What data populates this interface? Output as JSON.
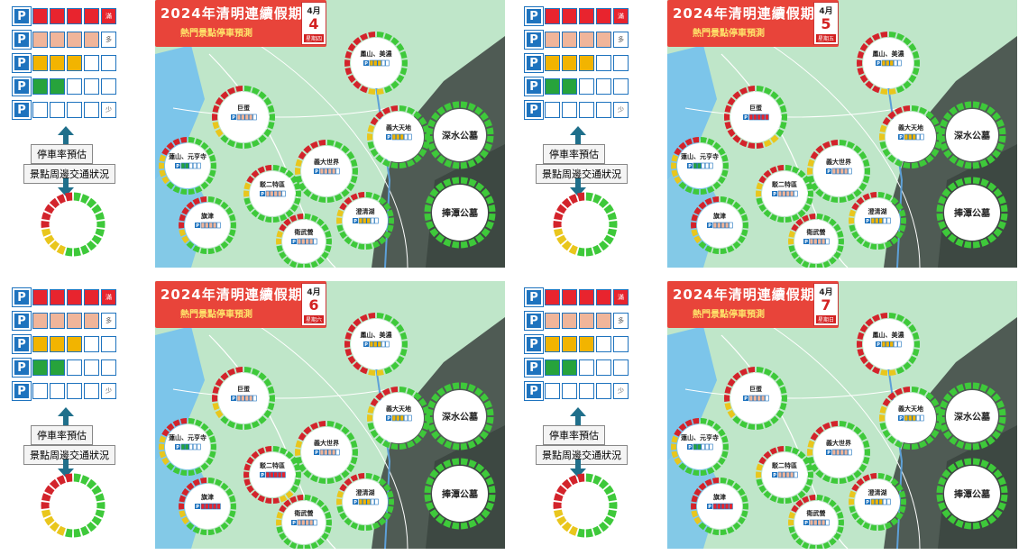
{
  "legend": {
    "parking_label": "停車率預估",
    "traffic_label": "景點周邊交通狀況",
    "parking_levels": [
      {
        "fill_cells": 5,
        "fill_color": "#e8242e",
        "tag": "滿"
      },
      {
        "fill_cells": 4,
        "fill_color": "#f0b59a",
        "tag": "多"
      },
      {
        "fill_cells": 3,
        "fill_color": "#f2b400",
        "tag": ""
      },
      {
        "fill_cells": 2,
        "fill_color": "#27a33c",
        "tag": ""
      },
      {
        "fill_cells": 0,
        "fill_color": "#ffffff",
        "tag": "少"
      }
    ],
    "p_letter": "P"
  },
  "title": "2024年清明連續假期",
  "subtitle": "熱門景點停車預測",
  "month": "4月",
  "panels": [
    {
      "day": "4",
      "weekday": "星期四"
    },
    {
      "day": "5",
      "weekday": "星期五"
    },
    {
      "day": "6",
      "weekday": "星期六"
    },
    {
      "day": "7",
      "weekday": "星期日"
    }
  ],
  "pois": {
    "fengshan": "鳳山、美濃",
    "jukan": "巨蛋",
    "lotus": "蓮池潭",
    "yuanheng": "蓮山、元亨寺",
    "dreammall": "義大天地",
    "pier2": "駁二特區",
    "cijin": "旗津",
    "weiwu": "衛武營",
    "chengching": "澄清湖",
    "shenshui": "深水公墓",
    "bitan": "捧潭公墓",
    "yida": "義大世界"
  },
  "colors": {
    "ring_green": "#3ec93a",
    "ring_red": "#d3232b",
    "ring_yellow": "#e9c61d",
    "title_red": "#e8443a",
    "map_land": "#bfe6c9",
    "map_sea": "#7cc5ea",
    "map_mountain": "#4f5b54"
  }
}
